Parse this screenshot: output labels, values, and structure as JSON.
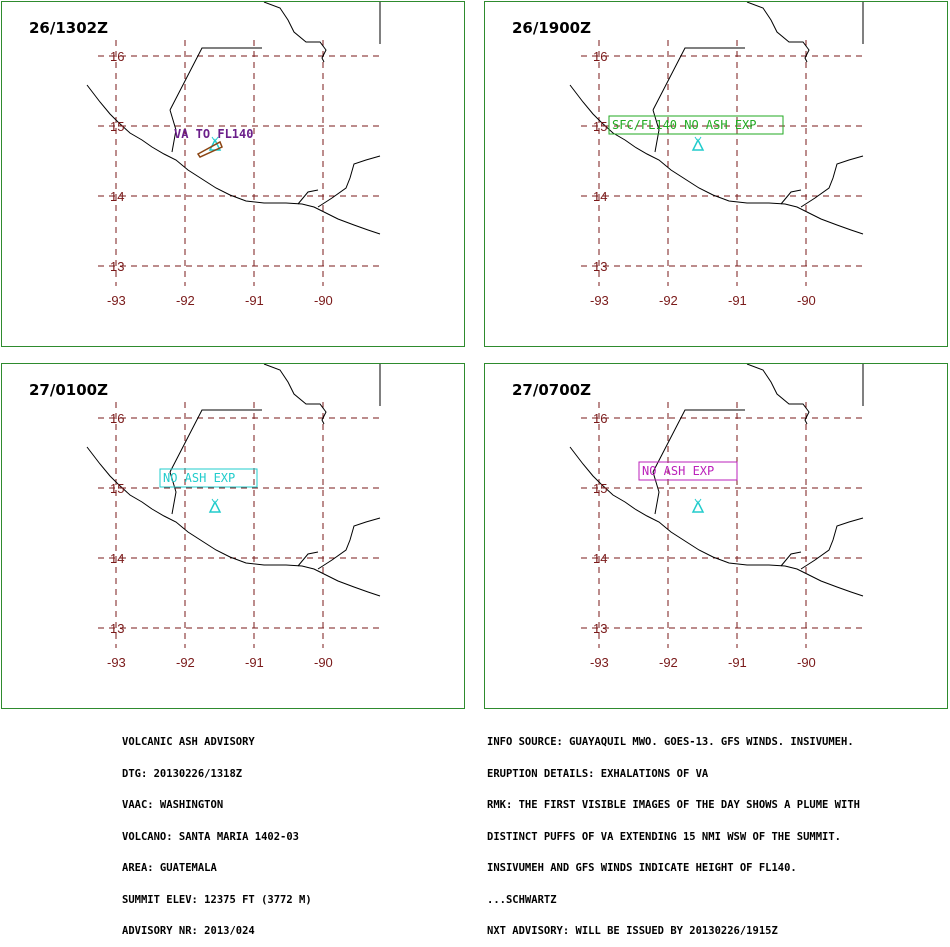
{
  "panels": [
    {
      "title": "26/1302Z",
      "ash": {
        "label": "VA TO FL140",
        "color": "#6b1f8a"
      }
    },
    {
      "title": "26/1900Z",
      "ash": {
        "label": "SFC/FL140 NO ASH EXP",
        "color": "#22aa22"
      }
    },
    {
      "title": "27/0100Z",
      "ash": {
        "label": "NO ASH EXP",
        "color": "#22cccc"
      }
    },
    {
      "title": "27/0700Z",
      "ash": {
        "label": "NO ASH EXP",
        "color": "#bb22bb"
      }
    }
  ],
  "axes": {
    "lat_labels": [
      "16",
      "15",
      "14",
      "13"
    ],
    "lon_labels": [
      "-93",
      "-92",
      "-91",
      "-90"
    ]
  },
  "volcano_icon": {
    "name": "triangle-volcano-icon",
    "color": "#22cccc"
  },
  "footer_left": [
    "VOLCANIC ASH ADVISORY",
    "DTG: 20130226/1318Z",
    "VAAC: WASHINGTON",
    "VOLCANO: SANTA MARIA 1402-03",
    "AREA: GUATEMALA",
    "SUMMIT ELEV: 12375 FT (3772 M)",
    "ADVISORY NR: 2013/024"
  ],
  "footer_right": [
    "INFO SOURCE: GUAYAQUIL MWO. GOES-13. GFS WINDS. INSIVUMEH.",
    "ERUPTION DETAILS: EXHALATIONS OF VA",
    "RMK: THE FIRST VISIBLE IMAGES OF THE DAY SHOWS A PLUME WITH",
    "DISTINCT PUFFS OF VA EXTENDING 15 NMI WSW OF THE SUMMIT.",
    "INSIVUMEH AND GFS WINDS INDICATE HEIGHT OF FL140.",
    "...SCHWARTZ",
    "NXT ADVISORY: WILL BE ISSUED BY 20130226/1915Z"
  ]
}
